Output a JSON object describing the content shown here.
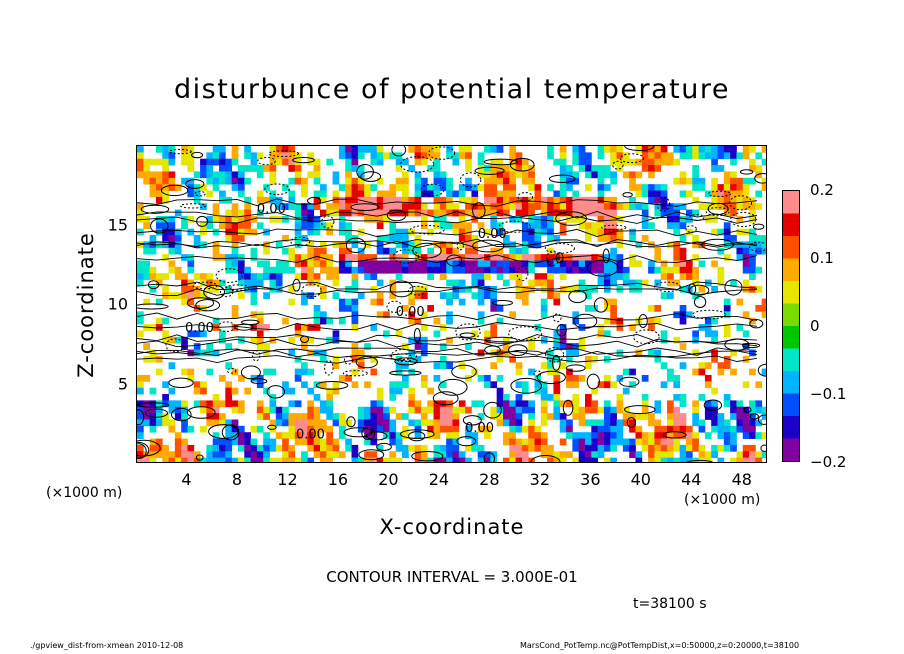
{
  "chart_data": {
    "type": "heatmap",
    "title": "disturbunce of potential temperature",
    "xlabel": "X-coordinate",
    "ylabel": "Z-coordinate",
    "x_unit": "(×1000 m)",
    "xlim": [
      0,
      50
    ],
    "ylim": [
      0,
      20
    ],
    "x_ticks": [
      "4",
      "8",
      "12",
      "16",
      "20",
      "24",
      "28",
      "32",
      "36",
      "40",
      "44",
      "48"
    ],
    "y_ticks": [
      "5",
      "10",
      "15"
    ],
    "colorbar": {
      "range": [
        -0.2,
        0.2
      ],
      "ticks": [
        "0.2",
        "0.1",
        "0",
        "−0.1",
        "−0.2"
      ],
      "colors": [
        "#8000a0",
        "#1a00c8",
        "#0050ff",
        "#00b4ff",
        "#00e6c8",
        "#00c800",
        "#78dc00",
        "#e6e600",
        "#ffaa00",
        "#ff5000",
        "#e60000",
        "#ff8c8c"
      ]
    },
    "contour_labels": [
      {
        "text": "0.00",
        "x": 9.5,
        "z": 15.8
      },
      {
        "text": "0.00",
        "x": 3.8,
        "z": 8.3
      },
      {
        "text": "0.00",
        "x": 20.5,
        "z": 9.3
      },
      {
        "text": "0.00",
        "x": 12.6,
        "z": 1.6
      },
      {
        "text": "0.00",
        "x": 27.0,
        "z": 14.2
      },
      {
        "text": "0.00",
        "x": 26.0,
        "z": 2.0
      }
    ]
  },
  "contour_interval": "CONTOUR INTERVAL = 3.000E-01",
  "time_label": "t=38100 s",
  "footer_left": "./gpview_dist-from-xmean  2010-12-08",
  "footer_right": "MarsCond_PotTemp.nc@PotTempDist,x=0:50000,z=0:20000,t=38100"
}
